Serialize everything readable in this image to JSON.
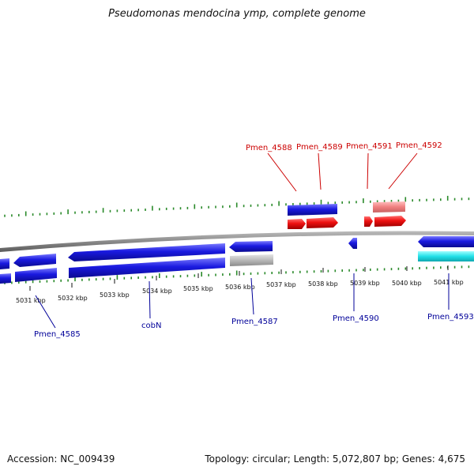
{
  "title": "Pseudomonas mendocina ymp, complete genome",
  "footer": {
    "accession": "Accession: NC_009439",
    "topology": "Topology: circular; Length: 5,072,807 bp; Genes: 4,675"
  },
  "axis_labels": [
    "5031 kbp",
    "5032 kbp",
    "5033 kbp",
    "5034 kbp",
    "5035 kbp",
    "5036 kbp",
    "5037 kbp",
    "5038 kbp",
    "5039 kbp",
    "5040 kbp",
    "5041 kbp"
  ],
  "top_gene_labels": [
    "Pmen_4588",
    "Pmen_4589",
    "Pmen_4591",
    "Pmen_4592"
  ],
  "bottom_gene_labels": [
    "Pmen_4585",
    "cobN",
    "Pmen_4587",
    "Pmen_4590",
    "Pmen_4593"
  ],
  "colors": {
    "cds_blue": "#1a1adb",
    "gene_red": "#ee1111",
    "pseudo_pink": "#f08080",
    "grey_feature": "#b8b8b8",
    "cyan_feature": "#22e0e8",
    "gc_ticks": "#2a8a2a",
    "backbone": "#8a8a8a"
  }
}
